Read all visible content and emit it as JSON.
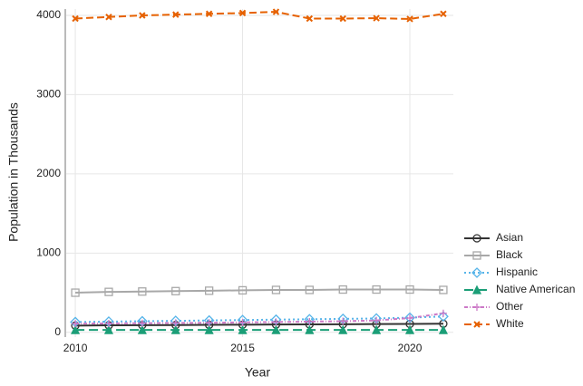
{
  "chart_data": {
    "type": "line",
    "x_label": "Year",
    "y_label": "Population in Thousands",
    "x": [
      2010,
      2011,
      2012,
      2013,
      2014,
      2015,
      2016,
      2017,
      2018,
      2019,
      2020,
      2021
    ],
    "series": [
      {
        "name": "Asian",
        "color": "#333333",
        "marker": "circle",
        "dash": "",
        "values": [
          85,
          88,
          90,
          92,
          94,
          96,
          98,
          100,
          102,
          104,
          106,
          108
        ]
      },
      {
        "name": "Black",
        "color": "#a8a8a8",
        "marker": "square",
        "dash": "",
        "values": [
          500,
          510,
          515,
          520,
          525,
          530,
          535,
          535,
          540,
          540,
          540,
          535
        ]
      },
      {
        "name": "Hispanic",
        "color": "#56b4e9",
        "marker": "diamond",
        "dash": "2,3",
        "values": [
          130,
          135,
          140,
          145,
          150,
          155,
          160,
          165,
          170,
          175,
          185,
          200
        ]
      },
      {
        "name": "Native American",
        "color": "#1b9e77",
        "marker": "triangle",
        "dash": "10,5",
        "values": [
          30,
          30,
          30,
          30,
          30,
          30,
          30,
          30,
          30,
          30,
          30,
          30
        ]
      },
      {
        "name": "Other",
        "color": "#cc79c7",
        "marker": "plus",
        "dash": "4,2,1,2",
        "values": [
          110,
          112,
          115,
          118,
          120,
          125,
          130,
          135,
          140,
          150,
          180,
          240
        ]
      },
      {
        "name": "White",
        "color": "#e66101",
        "marker": "x",
        "dash": "8,4",
        "values": [
          3960,
          3980,
          4000,
          4010,
          4020,
          4030,
          4045,
          3960,
          3960,
          3965,
          3955,
          4020
        ]
      }
    ],
    "xlim": [
      2009.7,
      2021.3
    ],
    "xticks": [
      2010,
      2015,
      2020
    ],
    "ylim": [
      -60,
      4080
    ],
    "yticks": [
      0,
      1000,
      2000,
      3000,
      4000
    ],
    "grid": true,
    "legend": "right"
  }
}
